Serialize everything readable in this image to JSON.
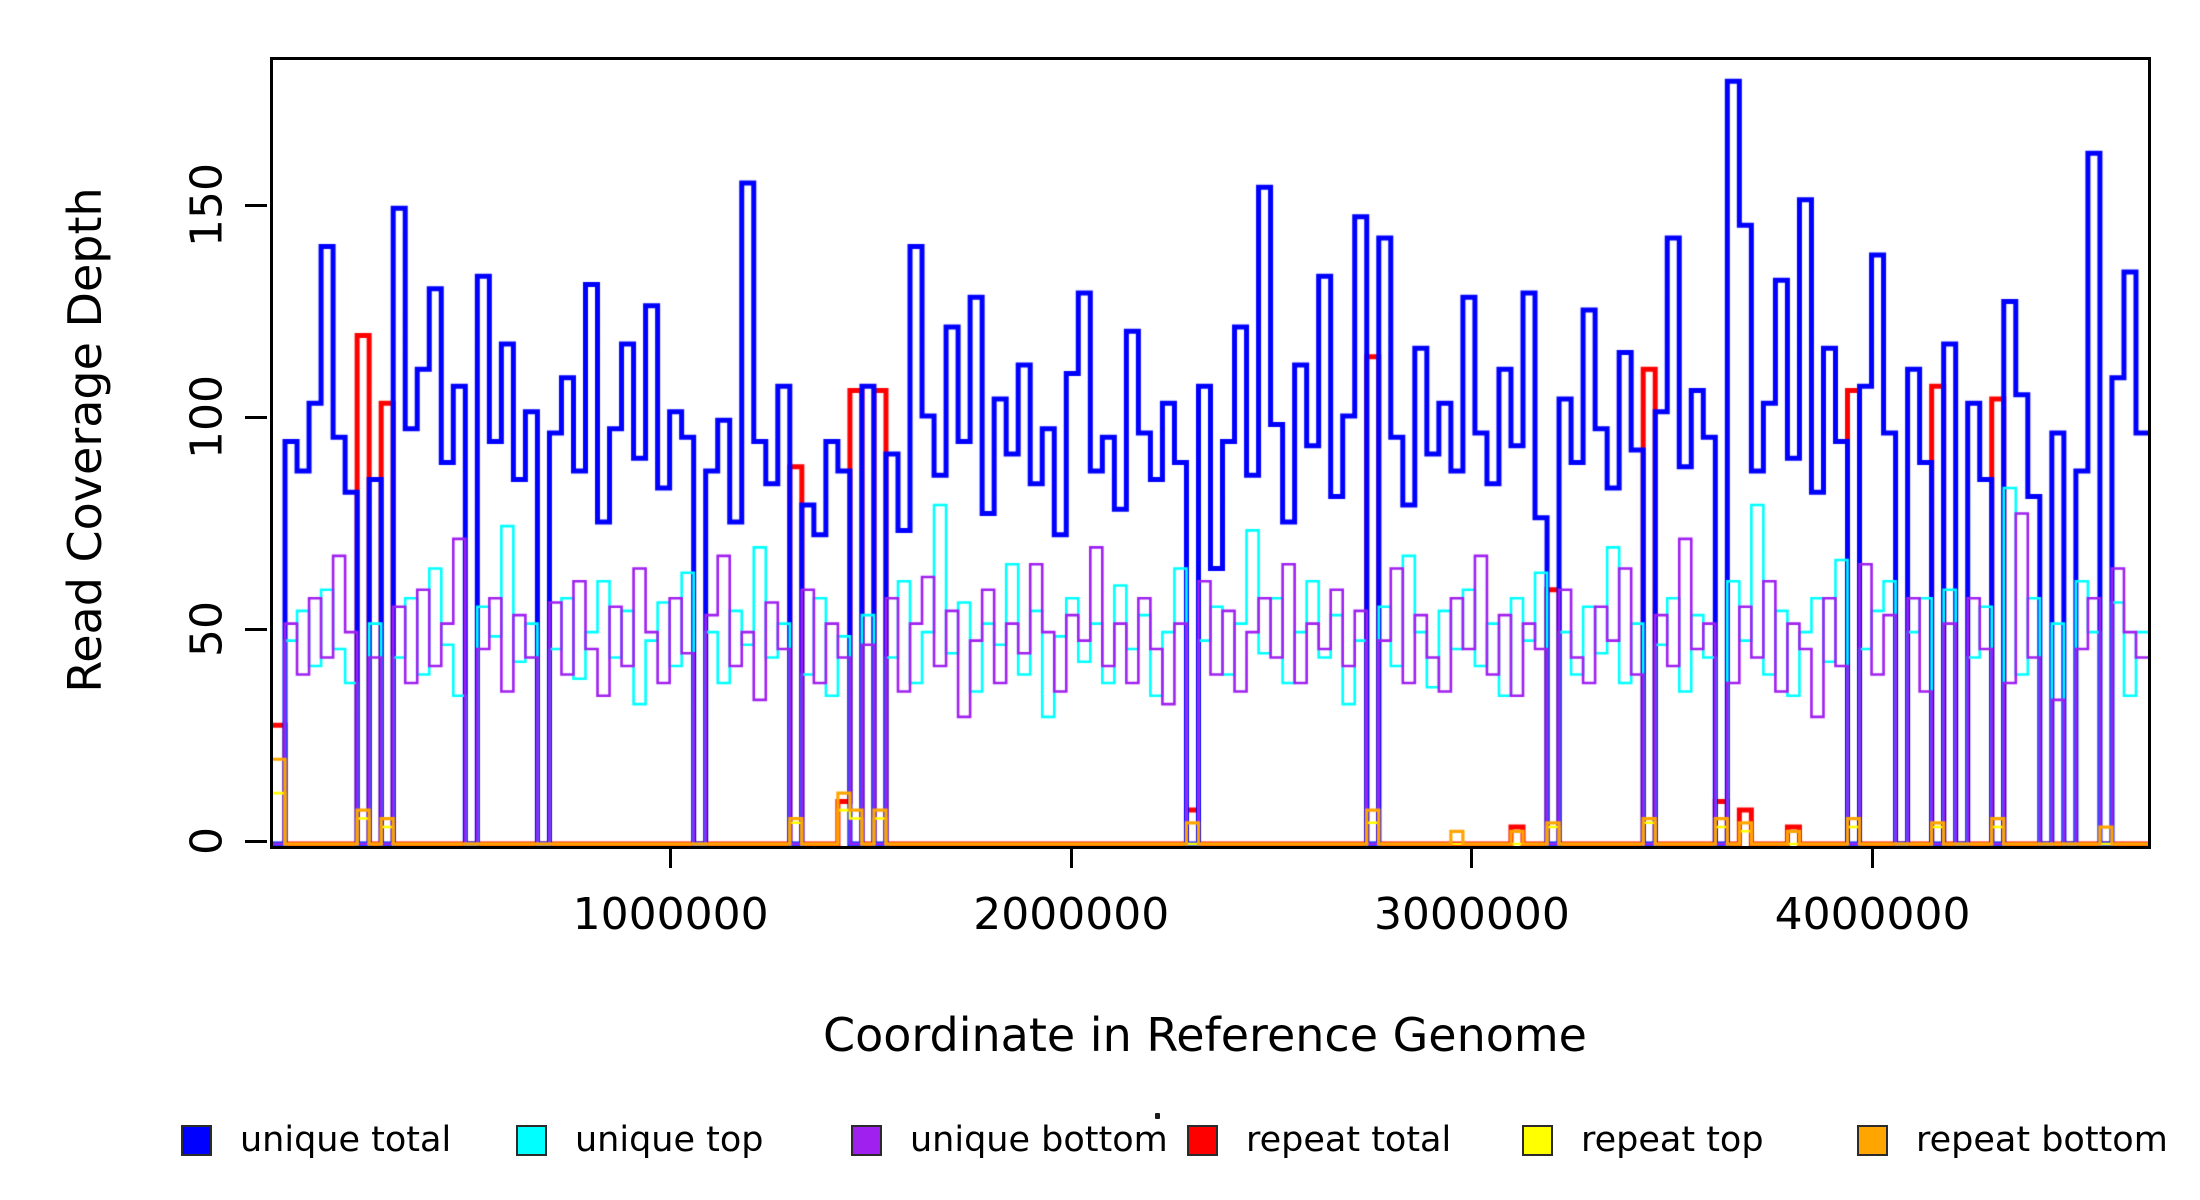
{
  "axes": {
    "x": {
      "label": "Coordinate in Reference Genome",
      "ticks": [
        1000000,
        2000000,
        3000000,
        4000000
      ],
      "tick_labels": [
        "1000000",
        "2000000",
        "3000000",
        "4000000"
      ],
      "range": [
        0,
        4680000
      ]
    },
    "y": {
      "label": "Read Coverage Depth",
      "ticks": [
        0,
        50,
        100,
        150
      ],
      "tick_labels": [
        "0",
        "50",
        "100",
        "150"
      ],
      "range": [
        0,
        185
      ]
    }
  },
  "legend": {
    "items": [
      {
        "label": "unique total",
        "color": "#0000FF"
      },
      {
        "label": "unique top",
        "color": "#00FFFF"
      },
      {
        "label": "unique bottom",
        "color": "#A020F0"
      },
      {
        "label": "repeat total",
        "color": "#FF0000"
      },
      {
        "label": "repeat top",
        "color": "#FFFF00"
      },
      {
        "label": "repeat bottom",
        "color": "#FFA500"
      }
    ]
  },
  "chart_data": {
    "type": "line",
    "step_mode": "post",
    "title": "",
    "xlabel": "Coordinate in Reference Genome",
    "ylabel": "Read Coverage Depth",
    "xlim": [
      0,
      4680000
    ],
    "ylim": [
      0,
      185
    ],
    "grid": false,
    "legend_position": "bottom-horizontal",
    "bin_size": 30000,
    "n_bins": 156,
    "draw_order": [
      3,
      0,
      1,
      2,
      4,
      5
    ],
    "series": [
      {
        "name": "unique total",
        "color": "#0000FF",
        "line_width": 5,
        "values": [
          0,
          95,
          88,
          104,
          141,
          96,
          83,
          0,
          86,
          0,
          150,
          98,
          112,
          131,
          90,
          108,
          0,
          134,
          95,
          118,
          86,
          102,
          0,
          97,
          110,
          88,
          132,
          76,
          98,
          118,
          91,
          127,
          84,
          102,
          96,
          0,
          88,
          100,
          76,
          156,
          95,
          85,
          108,
          0,
          80,
          73,
          95,
          88,
          0,
          108,
          0,
          92,
          74,
          141,
          101,
          87,
          122,
          95,
          129,
          78,
          105,
          92,
          113,
          85,
          98,
          73,
          111,
          130,
          88,
          96,
          79,
          121,
          97,
          86,
          104,
          90,
          0,
          108,
          65,
          95,
          122,
          87,
          155,
          99,
          76,
          113,
          94,
          134,
          82,
          101,
          148,
          0,
          143,
          96,
          80,
          117,
          92,
          104,
          88,
          129,
          97,
          85,
          112,
          94,
          130,
          77,
          0,
          105,
          90,
          126,
          98,
          84,
          116,
          93,
          0,
          102,
          143,
          89,
          107,
          96,
          0,
          180,
          146,
          88,
          104,
          133,
          91,
          152,
          83,
          117,
          95,
          0,
          108,
          139,
          97,
          0,
          112,
          90,
          0,
          118,
          0,
          104,
          86,
          0,
          128,
          106,
          82,
          0,
          97,
          0,
          88,
          163,
          0,
          110,
          135,
          97
        ]
      },
      {
        "name": "unique top",
        "color": "#00FFFF",
        "line_width": 2.6,
        "values": [
          0,
          48,
          55,
          42,
          60,
          46,
          38,
          0,
          52,
          0,
          44,
          58,
          40,
          65,
          47,
          35,
          0,
          56,
          49,
          75,
          43,
          52,
          0,
          46,
          58,
          39,
          50,
          62,
          44,
          55,
          33,
          48,
          57,
          42,
          64,
          0,
          50,
          38,
          55,
          47,
          70,
          44,
          52,
          0,
          40,
          58,
          35,
          49,
          0,
          54,
          0,
          44,
          62,
          38,
          50,
          80,
          45,
          57,
          36,
          52,
          47,
          66,
          40,
          55,
          30,
          49,
          58,
          43,
          52,
          38,
          61,
          46,
          54,
          35,
          50,
          65,
          0,
          48,
          56,
          40,
          52,
          74,
          45,
          58,
          38,
          50,
          62,
          44,
          54,
          33,
          48,
          0,
          56,
          42,
          68,
          50,
          37,
          55,
          46,
          60,
          42,
          52,
          35,
          58,
          48,
          64,
          0,
          50,
          40,
          56,
          45,
          70,
          38,
          52,
          0,
          47,
          58,
          36,
          54,
          44,
          0,
          62,
          48,
          80,
          40,
          55,
          35,
          50,
          58,
          43,
          67,
          0,
          46,
          55,
          62,
          0,
          50,
          58,
          0,
          60,
          0,
          44,
          56,
          0,
          84,
          40,
          58,
          0,
          52,
          0,
          62,
          50,
          0,
          57,
          35,
          50
        ]
      },
      {
        "name": "unique bottom",
        "color": "#A020F0",
        "line_width": 2.6,
        "values": [
          0,
          52,
          40,
          58,
          44,
          68,
          50,
          0,
          44,
          0,
          56,
          38,
          60,
          42,
          52,
          72,
          0,
          46,
          58,
          36,
          54,
          44,
          0,
          57,
          40,
          62,
          46,
          35,
          56,
          42,
          65,
          50,
          38,
          58,
          45,
          0,
          54,
          68,
          42,
          50,
          34,
          57,
          46,
          0,
          60,
          38,
          52,
          44,
          0,
          47,
          0,
          58,
          36,
          52,
          63,
          42,
          55,
          30,
          48,
          60,
          38,
          52,
          45,
          66,
          50,
          36,
          54,
          48,
          70,
          42,
          52,
          38,
          58,
          46,
          33,
          52,
          0,
          62,
          40,
          55,
          36,
          50,
          58,
          44,
          66,
          38,
          52,
          46,
          60,
          42,
          55,
          0,
          48,
          65,
          38,
          54,
          44,
          36,
          58,
          46,
          68,
          40,
          54,
          35,
          52,
          46,
          0,
          60,
          44,
          38,
          56,
          48,
          65,
          40,
          0,
          54,
          42,
          72,
          46,
          52,
          0,
          38,
          56,
          44,
          62,
          36,
          52,
          46,
          30,
          58,
          42,
          0,
          66,
          40,
          54,
          0,
          58,
          36,
          0,
          52,
          0,
          58,
          46,
          0,
          38,
          78,
          44,
          0,
          34,
          0,
          46,
          58,
          0,
          65,
          50,
          44
        ]
      },
      {
        "name": "repeat total",
        "color": "#FF0000",
        "line_width": 5,
        "baseline": 0,
        "spikes": {
          "0": 28,
          "7": 120,
          "9": 104,
          "43": 89,
          "47": 10,
          "48": 107,
          "50": 107,
          "76": 8,
          "91": 115,
          "103": 4,
          "106": 60,
          "114": 112,
          "120": 10,
          "122": 8,
          "126": 4,
          "131": 107,
          "138": 108,
          "143": 105
        }
      },
      {
        "name": "repeat top",
        "color": "#FFFF00",
        "line_width": 2.6,
        "baseline": 0,
        "spikes": {
          "0": 12,
          "7": 6,
          "9": 4,
          "43": 5,
          "47": 8,
          "48": 6,
          "50": 6,
          "91": 5,
          "106": 4,
          "114": 5,
          "120": 4,
          "122": 3,
          "131": 4,
          "138": 4,
          "143": 4
        }
      },
      {
        "name": "repeat bottom",
        "color": "#FFA500",
        "line_width": 3.2,
        "baseline": 0,
        "spikes": {
          "0": 20,
          "7": 8,
          "9": 6,
          "43": 6,
          "47": 12,
          "48": 8,
          "50": 8,
          "76": 5,
          "91": 8,
          "98": 3,
          "103": 3,
          "106": 5,
          "114": 6,
          "120": 6,
          "122": 5,
          "126": 3,
          "131": 6,
          "138": 5,
          "143": 6,
          "152": 4
        }
      }
    ]
  }
}
